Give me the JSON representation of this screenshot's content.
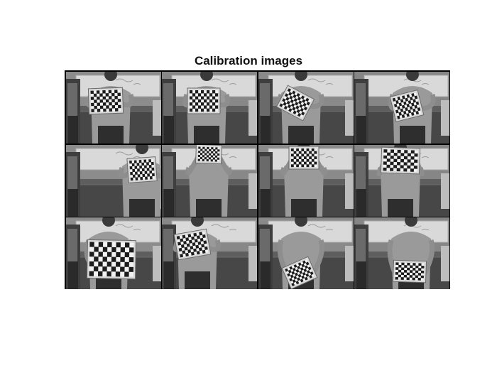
{
  "figure": {
    "title": "Calibration images"
  },
  "montage": {
    "rows": 3,
    "columns": 4,
    "tiles": [
      {
        "row": 1,
        "col": 1
      },
      {
        "row": 1,
        "col": 2
      },
      {
        "row": 1,
        "col": 3
      },
      {
        "row": 1,
        "col": 4
      },
      {
        "row": 2,
        "col": 1
      },
      {
        "row": 2,
        "col": 2
      },
      {
        "row": 2,
        "col": 3
      },
      {
        "row": 2,
        "col": 4
      },
      {
        "row": 3,
        "col": 1
      },
      {
        "row": 3,
        "col": 2
      },
      {
        "row": 3,
        "col": 3
      },
      {
        "row": 3,
        "col": 4
      }
    ]
  }
}
